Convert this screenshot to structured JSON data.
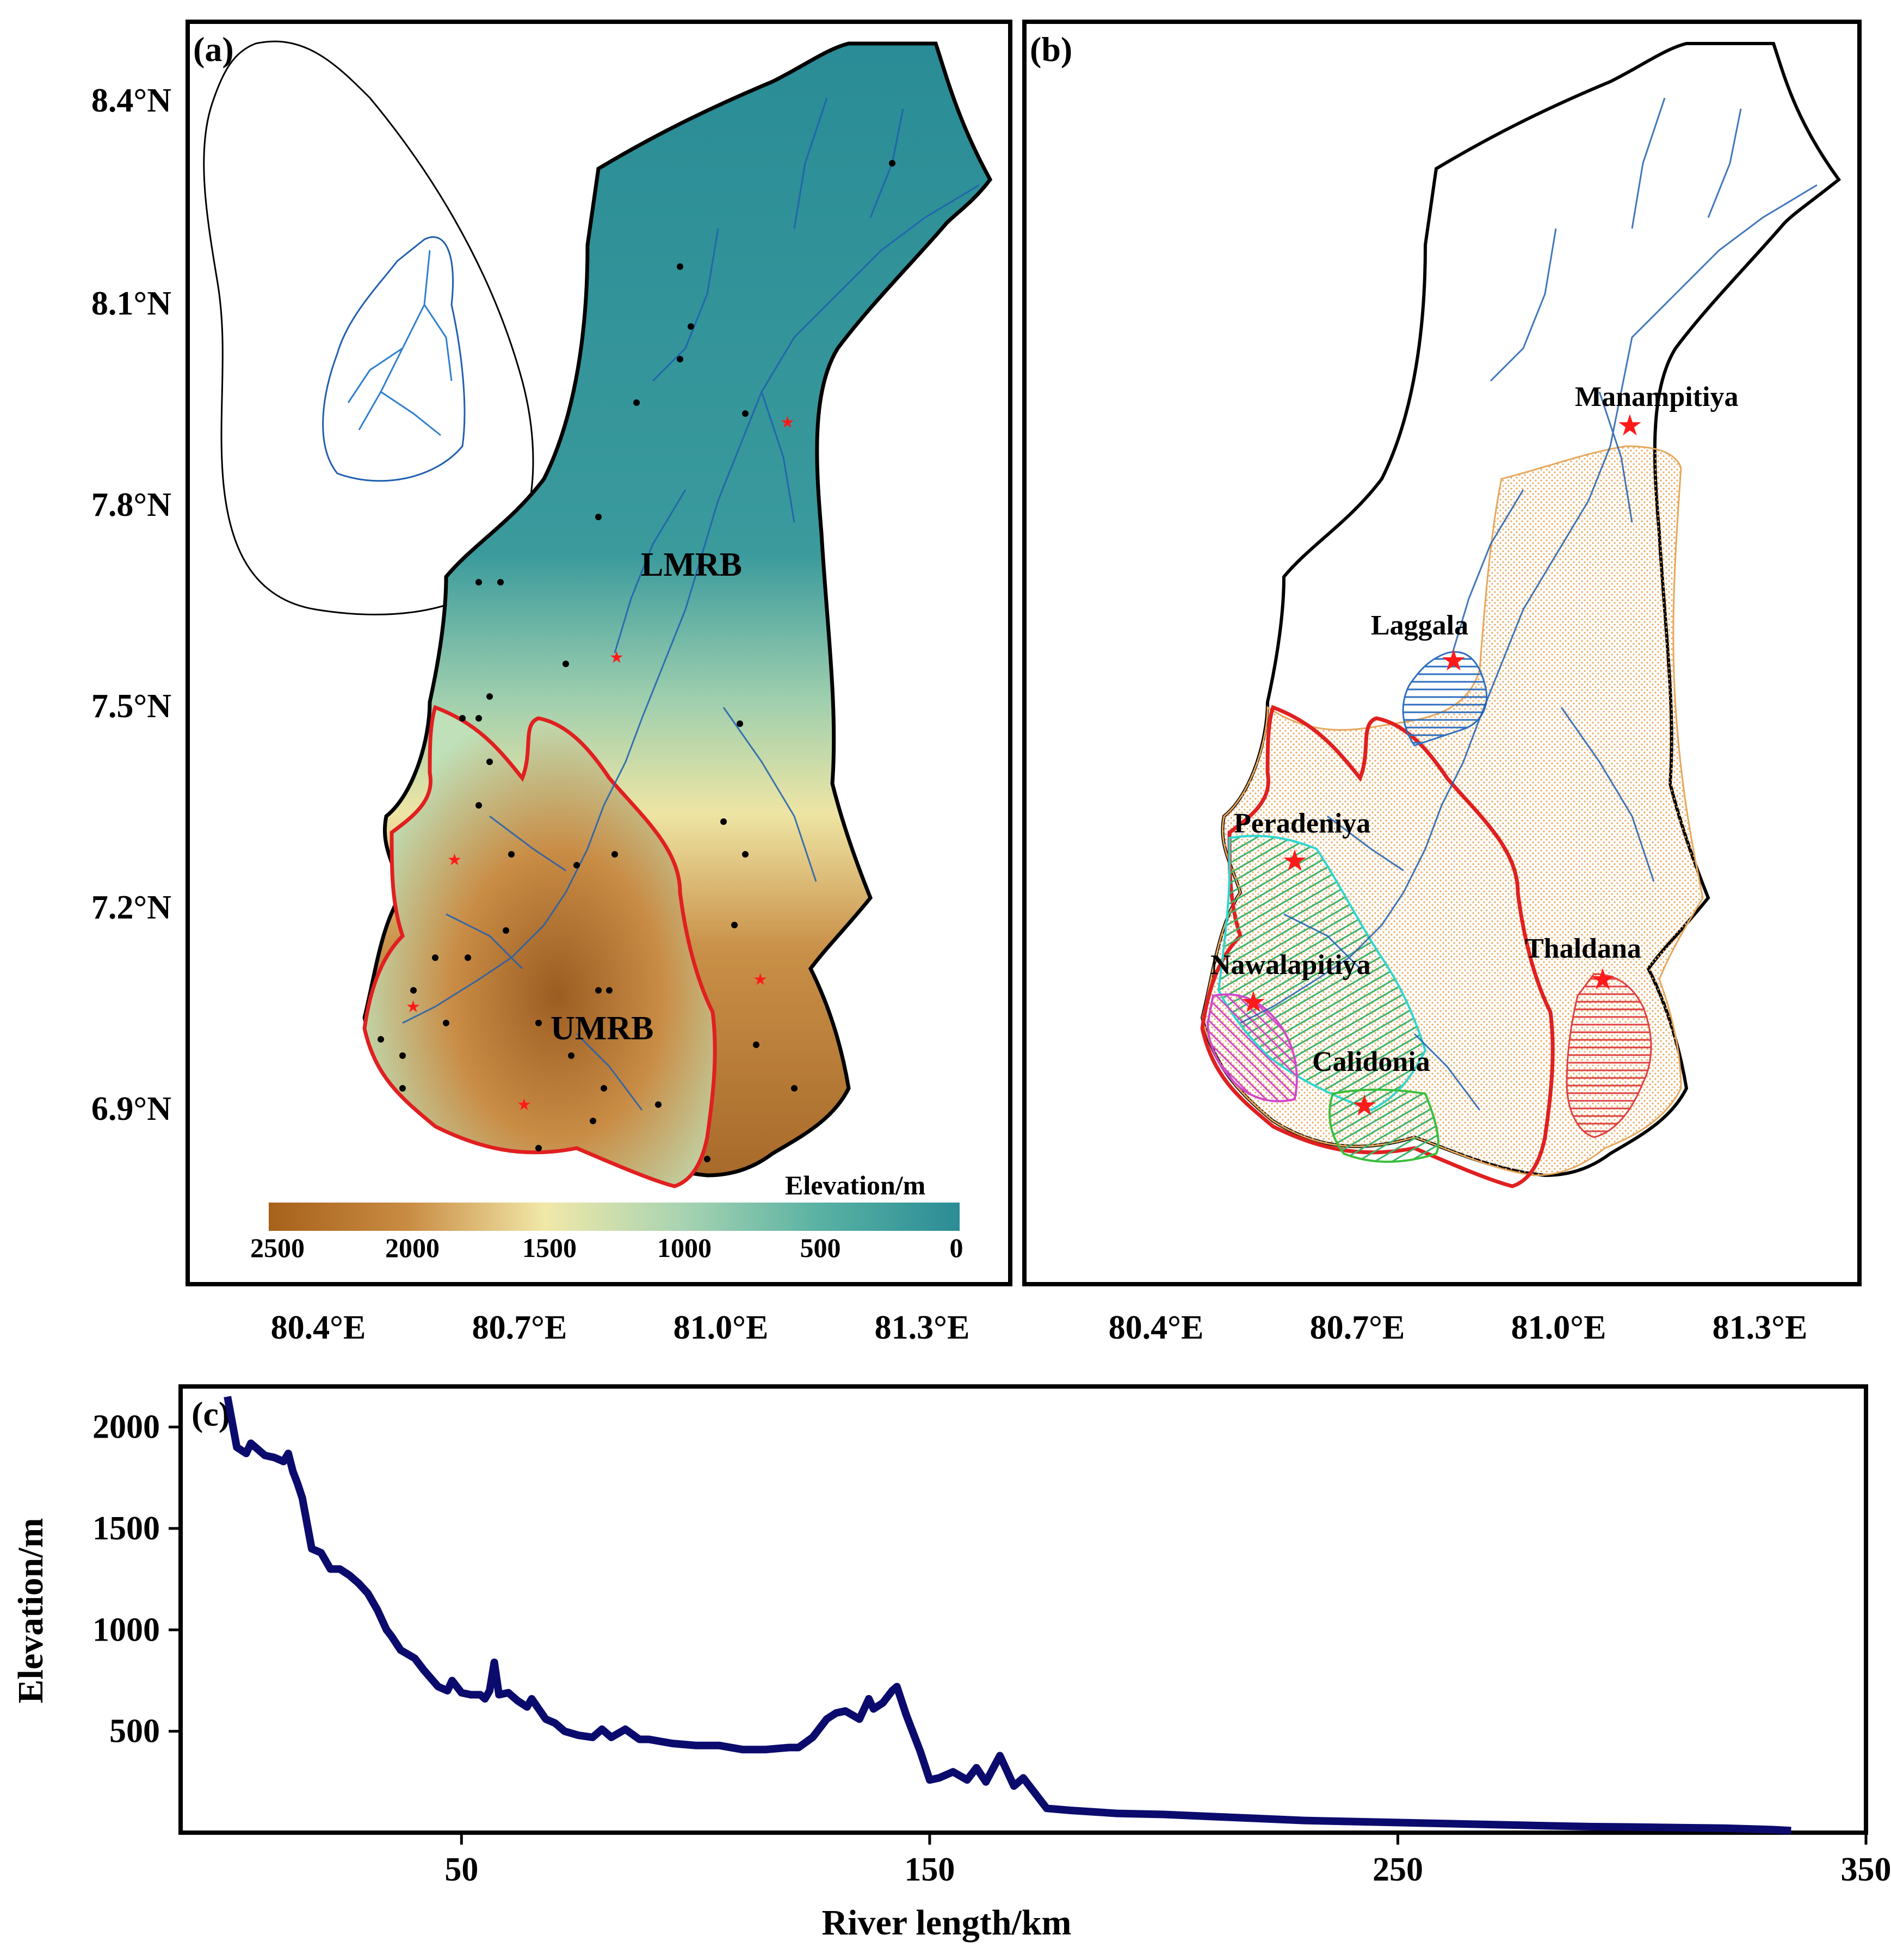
{
  "panel_a": {
    "label": "(a)",
    "lat_ticks": [
      "8.4°N",
      "8.1°N",
      "7.8°N",
      "7.5°N",
      "7.2°N",
      "6.9°N"
    ],
    "lon_ticks": [
      "80.4°E",
      "80.7°E",
      "81.0°E",
      "81.3°E"
    ],
    "basin_labels": [
      "LMRB",
      "UMRB"
    ],
    "colorbar": {
      "title": "Elevation/m",
      "tick_labels": [
        "2500",
        "2000",
        "1500",
        "1000",
        "500",
        "0"
      ],
      "colors": [
        "#a6611a",
        "#c98b43",
        "#f1e8a8",
        "#a7d3b2",
        "#58b1a3",
        "#2a8c96"
      ]
    }
  },
  "panel_b": {
    "label": "(b)",
    "lon_ticks": [
      "80.4°E",
      "80.7°E",
      "81.0°E",
      "81.3°E"
    ],
    "stations": [
      "Manampitiya",
      "Laggala",
      "Peradeniya",
      "Thaldana",
      "Nawalapitiya",
      "Calidonia"
    ]
  },
  "panel_c": {
    "label": "(c)",
    "line_color": "#0b0b6e"
  },
  "chart_data": {
    "type": "line",
    "title": "",
    "xlabel": "River length/km",
    "ylabel": "Elevation/m",
    "xticks": [
      "50",
      "150",
      "250",
      "350"
    ],
    "yticks": [
      "500",
      "1000",
      "1500",
      "2000"
    ],
    "xlim": [
      -10,
      350
    ],
    "ylim": [
      0,
      2200
    ],
    "series": [
      {
        "x": [
          0,
          2,
          4,
          5,
          8,
          10,
          12,
          13,
          14,
          15,
          16,
          18,
          20,
          22,
          24,
          26,
          28,
          30,
          32,
          34,
          35,
          37,
          40,
          42,
          45,
          47,
          48,
          50,
          52,
          54,
          55,
          56,
          57,
          58,
          60,
          62,
          64,
          65,
          68,
          70,
          72,
          75,
          78,
          80,
          82,
          85,
          88,
          90,
          95,
          100,
          105,
          110,
          115,
          120,
          122,
          125,
          128,
          130,
          132,
          135,
          137,
          138,
          140,
          142,
          143,
          145,
          148,
          150,
          152,
          155,
          158,
          160,
          162,
          165,
          168,
          170,
          175,
          180,
          190,
          200,
          210,
          220,
          230,
          240,
          250,
          260,
          270,
          280,
          290,
          300,
          310,
          320,
          330,
          334
        ],
        "y": [
          2150,
          1900,
          1870,
          1920,
          1860,
          1850,
          1830,
          1870,
          1780,
          1720,
          1650,
          1400,
          1380,
          1300,
          1300,
          1270,
          1230,
          1180,
          1100,
          1000,
          970,
          900,
          860,
          800,
          720,
          700,
          750,
          690,
          680,
          680,
          660,
          700,
          840,
          680,
          690,
          650,
          620,
          660,
          560,
          540,
          500,
          480,
          470,
          510,
          470,
          510,
          460,
          460,
          440,
          430,
          430,
          410,
          410,
          420,
          420,
          470,
          560,
          590,
          600,
          560,
          660,
          610,
          640,
          700,
          720,
          580,
          400,
          260,
          270,
          300,
          260,
          320,
          250,
          380,
          230,
          270,
          120,
          110,
          95,
          90,
          80,
          70,
          60,
          55,
          50,
          45,
          40,
          35,
          30,
          28,
          25,
          22,
          15,
          10
        ]
      }
    ]
  }
}
